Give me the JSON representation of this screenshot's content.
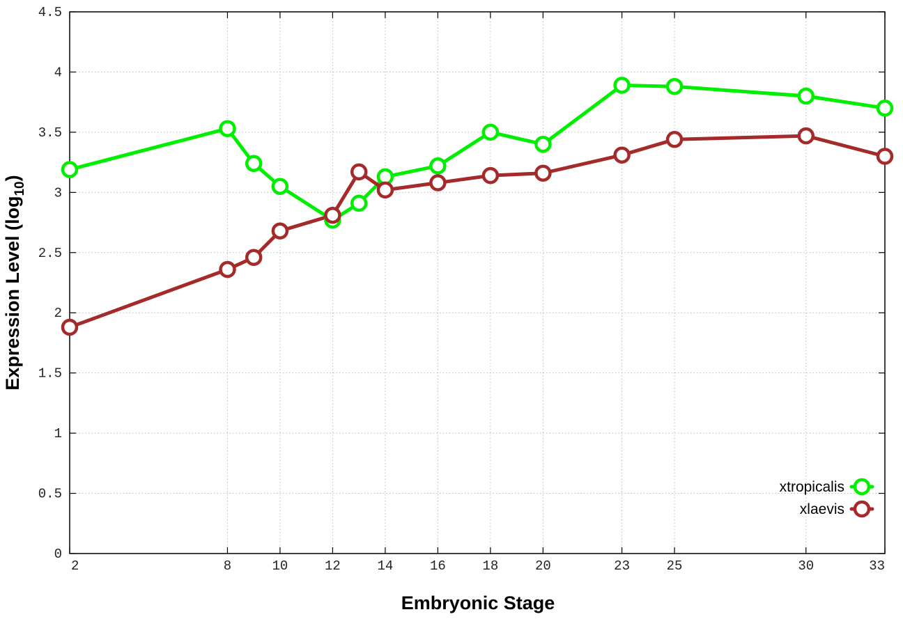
{
  "chart_data": {
    "type": "line",
    "title": "",
    "xlabel": "Embryonic Stage",
    "ylabel": {
      "main": "Expression Level (log",
      "sub": "10",
      "close": ")"
    },
    "x": [
      2,
      8,
      9,
      10,
      12,
      13,
      14,
      16,
      18,
      20,
      23,
      25,
      30,
      33
    ],
    "x_ticks": [
      2,
      8,
      10,
      12,
      14,
      16,
      18,
      20,
      23,
      25,
      30,
      33
    ],
    "x_tick_labels": [
      "2",
      "8",
      "10",
      "12",
      "14",
      "16",
      "18",
      "20",
      "23",
      "25",
      "30",
      "33"
    ],
    "xlim": [
      2,
      33
    ],
    "y_ticks": [
      0,
      0.5,
      1,
      1.5,
      2,
      2.5,
      3,
      3.5,
      4,
      4.5
    ],
    "y_tick_labels": [
      "0",
      "0.5",
      "1",
      "1.5",
      "2",
      "2.5",
      "3",
      "3.5",
      "4",
      "4.5"
    ],
    "ylim": [
      0,
      4.5
    ],
    "grid": true,
    "legend_position": "bottom-right",
    "series": [
      {
        "name": "xtropicalis",
        "color": "#00ee00",
        "values": [
          3.19,
          3.53,
          3.24,
          3.05,
          2.77,
          2.91,
          3.13,
          3.22,
          3.5,
          3.4,
          3.89,
          3.88,
          3.8,
          3.7
        ]
      },
      {
        "name": "xlaevis",
        "color": "#a52a2a",
        "values": [
          1.88,
          2.36,
          2.46,
          2.68,
          2.81,
          3.17,
          3.02,
          3.08,
          3.14,
          3.16,
          3.31,
          3.44,
          3.47,
          3.3
        ]
      }
    ]
  }
}
